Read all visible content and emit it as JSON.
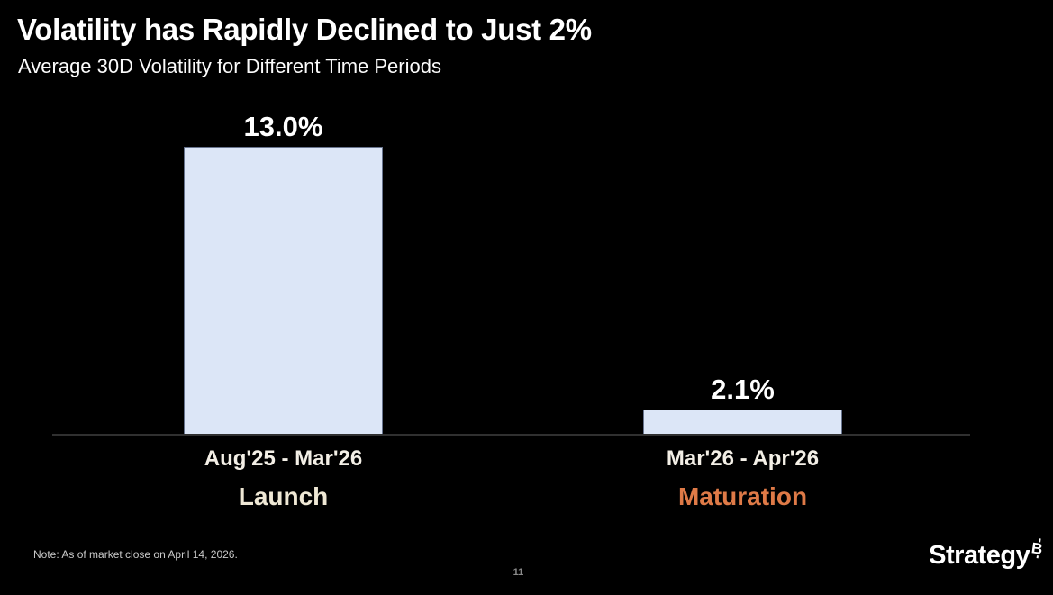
{
  "slide": {
    "title": "Volatility has Rapidly Declined to Just 2%",
    "subtitle": "Average 30D Volatility for Different Time Periods",
    "note": "Note: As of market close on April 14, 2026.",
    "page_number": "11",
    "logo_text": "Strategy",
    "logo_symbol": "B"
  },
  "colors": {
    "background": "#000000",
    "title_text": "#ffffff",
    "bar_fill": "#dce6f7",
    "bar_border": "#68748e",
    "axis_line": "#303030",
    "launch_label": "#efe8d5",
    "maturation_label": "#df7a47",
    "note_text": "#c9c9c9",
    "page_number_text": "#8a8a8a"
  },
  "chart_data": {
    "type": "bar",
    "title": "Volatility has Rapidly Declined to Just 2%",
    "subtitle": "Average 30D Volatility for Different Time Periods",
    "categories": [
      "Aug'25 - Mar'26",
      "Mar'26 - Apr'26"
    ],
    "category_phase_labels": [
      "Launch",
      "Maturation"
    ],
    "values": [
      13.0,
      2.1
    ],
    "value_labels": [
      "13.0%",
      "2.1%"
    ],
    "xlabel": "",
    "ylabel": "",
    "ylim": [
      1,
      13
    ],
    "grid": false,
    "legend": false,
    "bar_color": "#dce6f7",
    "phase_label_colors": [
      "#efe8d5",
      "#df7a47"
    ]
  }
}
